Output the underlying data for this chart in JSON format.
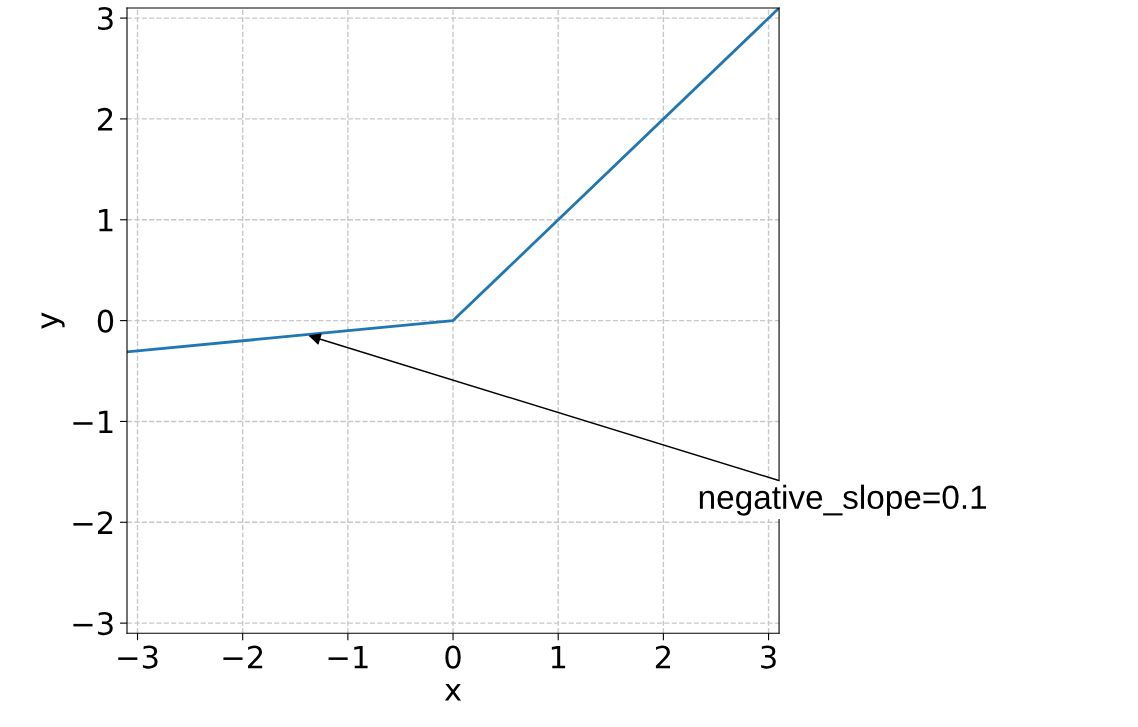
{
  "chart_data": {
    "type": "line",
    "xlabel": "x",
    "ylabel": "y",
    "x": [
      -3.1,
      0,
      3.1
    ],
    "series": [
      {
        "color": "#1f77b4",
        "values": [
          -0.31,
          0,
          3.1
        ]
      }
    ],
    "xlim": [
      -3.1,
      3.1
    ],
    "ylim": [
      -3.1,
      3.1
    ],
    "xticks": [
      -3,
      -2,
      -1,
      0,
      1,
      2,
      3
    ],
    "yticks": [
      -3,
      -2,
      -1,
      0,
      1,
      2,
      3
    ],
    "grid": true,
    "line_style": "solid",
    "marker": "none",
    "annotations": [
      {
        "text": "negative_slope=0.1",
        "x": -1.4,
        "y": -0.14
      }
    ]
  }
}
